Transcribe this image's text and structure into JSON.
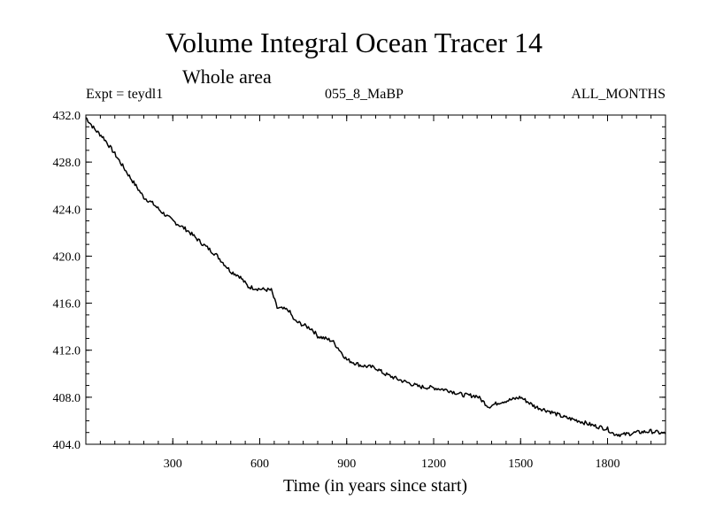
{
  "chart_data": {
    "type": "line",
    "title": "Volume Integral Ocean Tracer 14",
    "subtitle": "Whole area",
    "expt_label": "Expt = teydl1",
    "run_label": "055_8_MaBP",
    "months_label": "ALL_MONTHS",
    "xlabel": "Time (in years since start)",
    "ylabel": "",
    "xlim": [
      0,
      2000
    ],
    "ylim": [
      404.0,
      432.0
    ],
    "xticks": [
      300,
      600,
      900,
      1200,
      1500,
      1800
    ],
    "xtick_labels": [
      "300",
      "600",
      "900",
      "1200",
      "1500",
      "1800"
    ],
    "yticks": [
      404.0,
      408.0,
      412.0,
      416.0,
      420.0,
      424.0,
      428.0,
      432.0
    ],
    "ytick_labels": [
      "404.0",
      "408.0",
      "412.0",
      "416.0",
      "420.0",
      "424.0",
      "428.0",
      "432.0"
    ],
    "series": [
      {
        "name": "Volume Integral Ocean Tracer 14",
        "color": "#000000",
        "x": [
          0,
          30,
          60,
          100,
          150,
          200,
          230,
          260,
          300,
          350,
          400,
          450,
          500,
          530,
          560,
          600,
          640,
          660,
          700,
          720,
          780,
          800,
          850,
          870,
          900,
          950,
          1000,
          1030,
          1080,
          1150,
          1200,
          1250,
          1300,
          1350,
          1390,
          1430,
          1470,
          1500,
          1550,
          1600,
          1650,
          1700,
          1750,
          1800,
          1820,
          1850,
          1900,
          1950,
          1999
        ],
        "y": [
          431.8,
          430.8,
          430.1,
          428.7,
          426.8,
          425.0,
          424.5,
          423.8,
          423.0,
          422.2,
          421.1,
          420.1,
          418.7,
          418.3,
          417.4,
          417.2,
          417.1,
          415.6,
          415.4,
          414.5,
          413.8,
          413.2,
          412.8,
          412.2,
          411.2,
          410.7,
          410.5,
          410.0,
          409.5,
          408.9,
          408.8,
          408.6,
          408.2,
          408.1,
          407.2,
          407.6,
          407.8,
          408.0,
          407.2,
          406.8,
          406.3,
          406.0,
          405.6,
          405.3,
          404.9,
          404.8,
          405.0,
          405.1,
          404.9
        ]
      }
    ]
  }
}
